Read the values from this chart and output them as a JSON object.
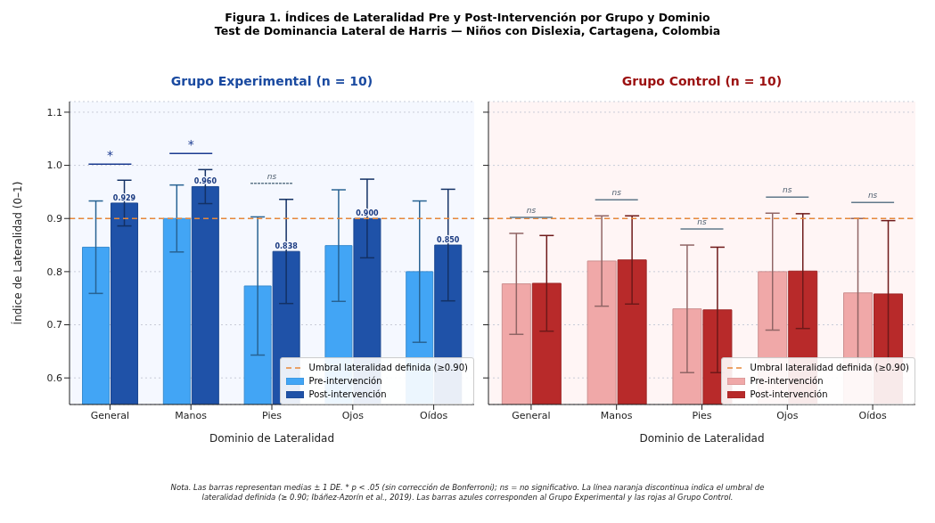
{
  "chart_data": [
    {
      "type": "bar",
      "title": "Grupo Experimental (n = 10)",
      "xlabel": "Dominio de Lateralidad",
      "ylabel": "Índice de Lateralidad (0–1)",
      "categories": [
        "General",
        "Manos",
        "Pies",
        "Ojos",
        "Oídos"
      ],
      "series": [
        {
          "name": "Pre-intervención",
          "color": "#42a5f5",
          "values": [
            0.846,
            0.9,
            0.773,
            0.849,
            0.8
          ],
          "errors": [
            0.087,
            0.063,
            0.13,
            0.105,
            0.133
          ]
        },
        {
          "name": "Post-intervención",
          "color": "#1f52a8",
          "values": [
            0.929,
            0.96,
            0.838,
            0.9,
            0.85
          ],
          "errors": [
            0.043,
            0.032,
            0.098,
            0.074,
            0.105
          ],
          "value_labels": [
            "0.929",
            "0.960",
            "0.838",
            "0.900",
            "0.850"
          ]
        }
      ],
      "ylim": [
        0.55,
        1.12
      ],
      "yticks": [
        0.6,
        0.7,
        0.8,
        0.9,
        {
          "value": 1,
          "label": "1.0"
        },
        1.1
      ],
      "grid": "y",
      "legend": "bottom right",
      "ref_lines": [
        {
          "axis": "y",
          "value": 0.9,
          "label": "Umbral lateralidad definida (≥0.90)",
          "color": "#e8883a",
          "line_style": "dashed"
        }
      ],
      "annotations": [
        "Figura 1. Índices de Lateralidad Pre y Post-Intervención por Grupo y Dominio",
        "Test de Dominancia Lateral de Harris — Niños con Dislexia, Cartagena, Colombia",
        "*",
        "*",
        "ns"
      ]
    },
    {
      "type": "bar",
      "title": "Grupo Control (n = 10)",
      "xlabel": "Dominio de Lateralidad",
      "categories": [
        "General",
        "Manos",
        "Pies",
        "Ojos",
        "Oídos"
      ],
      "series": [
        {
          "name": "Pre-intervención",
          "color": "#f0a8a8",
          "values": [
            0.777,
            0.82,
            0.73,
            0.8,
            0.76
          ],
          "errors": [
            0.095,
            0.085,
            0.12,
            0.11,
            0.14
          ]
        },
        {
          "name": "Post-intervención",
          "color": "#b82a2a",
          "values": [
            0.778,
            0.822,
            0.728,
            0.801,
            0.758
          ],
          "errors": [
            0.09,
            0.083,
            0.118,
            0.108,
            0.138
          ]
        }
      ],
      "ylim": [
        0.55,
        1.12
      ],
      "yticks": [
        0.6,
        0.7,
        0.8,
        0.9,
        1,
        1.1
      ],
      "grid": "y",
      "legend": "bottom right",
      "tick_labels": "x",
      "ref_lines": [
        {
          "axis": "y",
          "value": 0.9,
          "label": "Umbral lateralidad definida (≥0.90)",
          "color": "#e8883a",
          "line_style": "dashed"
        }
      ],
      "annotations": [
        "ns",
        "ns",
        "ns",
        "ns",
        "ns",
        "Nota. Las barras representan medias ± 1 DE. * p < .05 (sin corrección de Bonferroni); ns = no significativo. La línea naranja discontinua indica el umbral de lateralidad definida (≥ 0.90; Ibáñez-Azorín et al., 2019). Las barras azules corresponden al Grupo Experimental y las rojas al Grupo Control."
      ]
    }
  ]
}
